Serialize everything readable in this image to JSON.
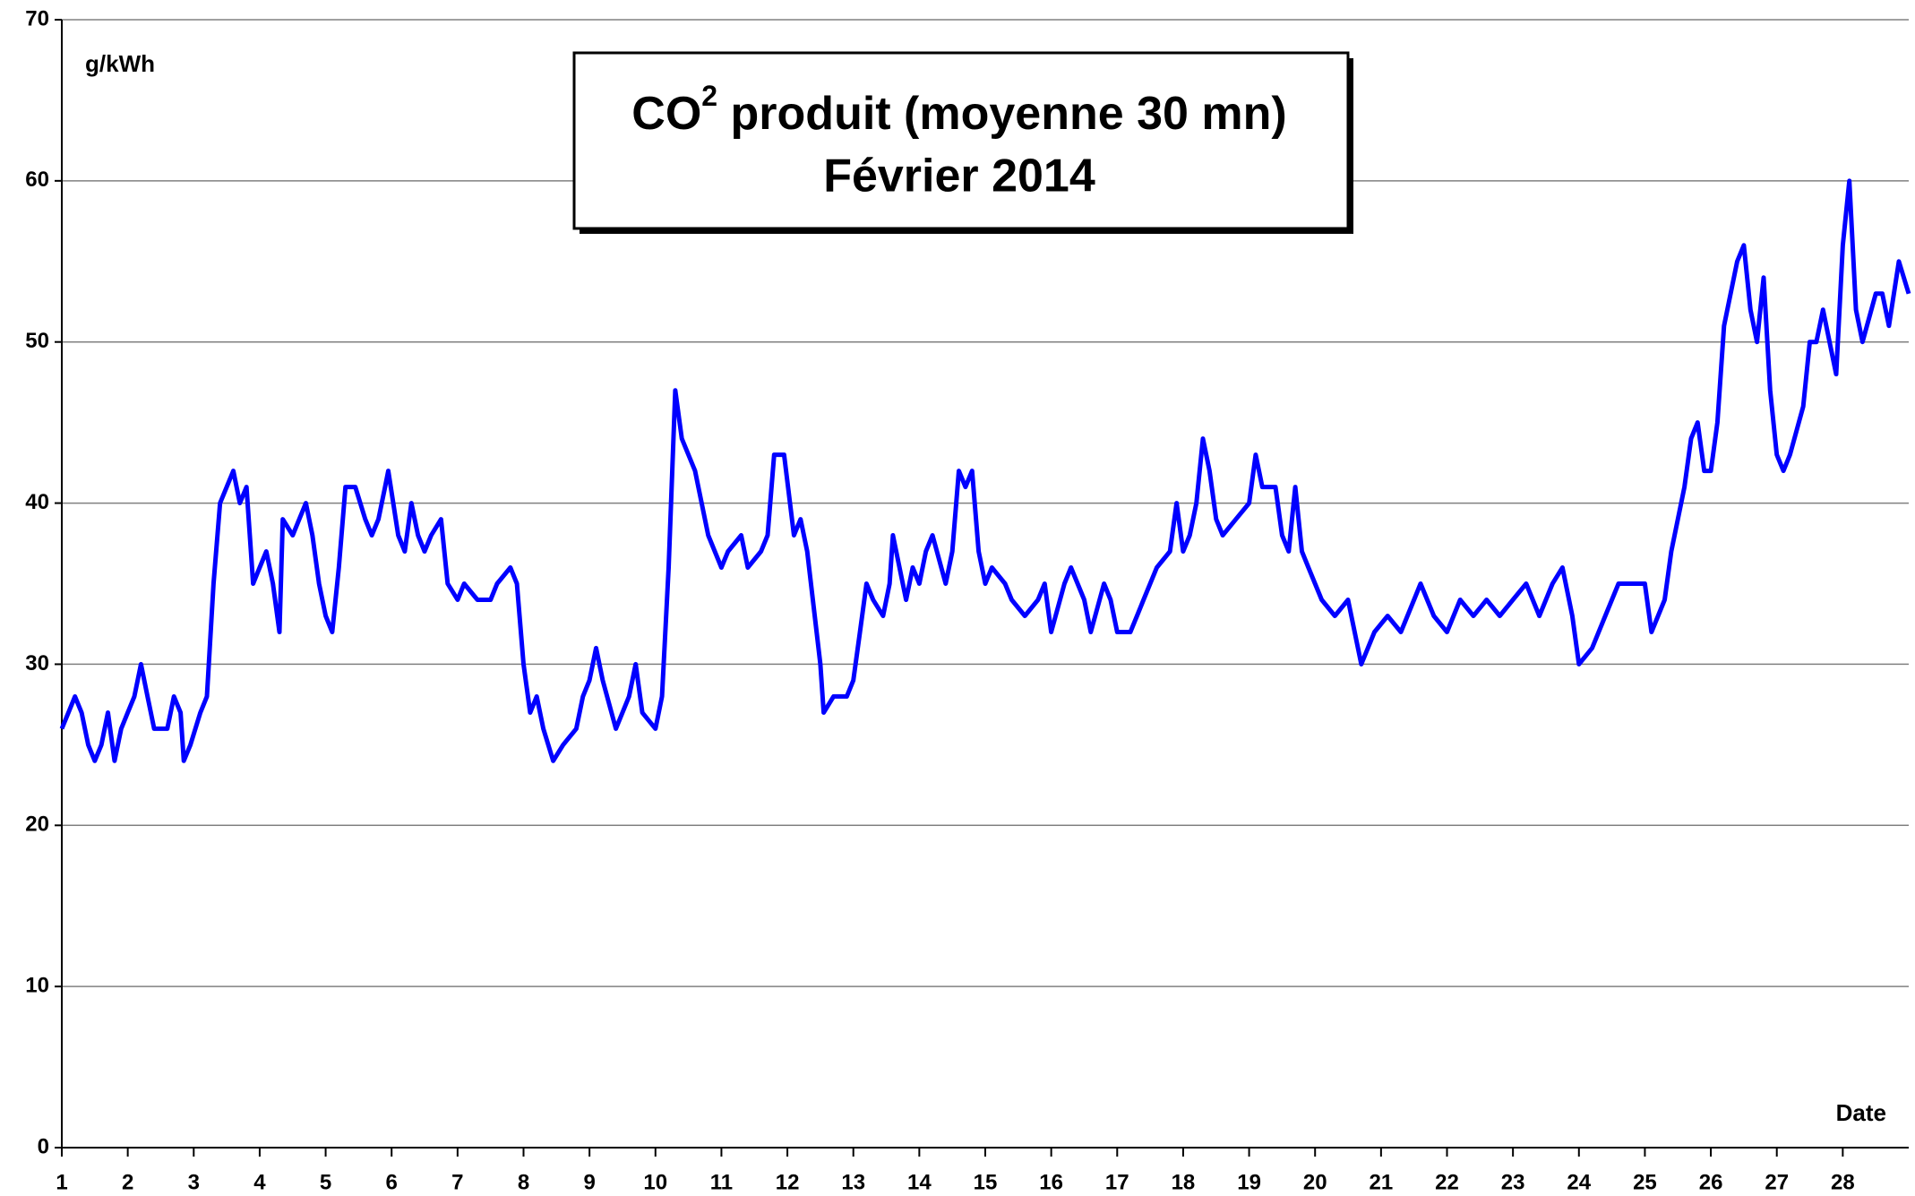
{
  "chart_data": {
    "type": "line",
    "title": [
      "CO",
      "2",
      " produit (moyenne 30 mn)"
    ],
    "subtitle": "Février 2014",
    "y_label": "g/kWh",
    "x_label": "Date",
    "color": "#0000ff",
    "grid": true,
    "xlim": [
      1,
      29
    ],
    "xticks": [
      1,
      2,
      3,
      4,
      5,
      6,
      7,
      8,
      9,
      10,
      11,
      12,
      13,
      14,
      15,
      16,
      17,
      18,
      19,
      20,
      21,
      22,
      23,
      24,
      25,
      26,
      27,
      28
    ],
    "ylim": [
      0,
      70
    ],
    "yticks": [
      0,
      10,
      20,
      30,
      40,
      50,
      60,
      70
    ],
    "x": [
      1.0,
      1.1,
      1.2,
      1.3,
      1.4,
      1.5,
      1.6,
      1.7,
      1.8,
      1.9,
      2.0,
      2.1,
      2.2,
      2.3,
      2.4,
      2.6,
      2.7,
      2.8,
      2.85,
      2.95,
      3.1,
      3.2,
      3.3,
      3.4,
      3.5,
      3.6,
      3.7,
      3.8,
      3.9,
      4.0,
      4.1,
      4.2,
      4.3,
      4.35,
      4.5,
      4.6,
      4.7,
      4.8,
      4.9,
      5.0,
      5.1,
      5.2,
      5.3,
      5.45,
      5.6,
      5.7,
      5.8,
      5.9,
      5.95,
      6.1,
      6.2,
      6.3,
      6.4,
      6.5,
      6.6,
      6.75,
      6.85,
      7.0,
      7.1,
      7.3,
      7.5,
      7.6,
      7.8,
      7.9,
      8.0,
      8.1,
      8.2,
      8.3,
      8.45,
      8.6,
      8.8,
      8.9,
      9.0,
      9.1,
      9.2,
      9.4,
      9.6,
      9.7,
      9.8,
      10.0,
      10.1,
      10.2,
      10.3,
      10.4,
      10.5,
      10.6,
      10.8,
      11.0,
      11.1,
      11.3,
      11.4,
      11.6,
      11.7,
      11.8,
      11.95,
      12.1,
      12.2,
      12.3,
      12.5,
      12.55,
      12.7,
      12.9,
      13.0,
      13.1,
      13.2,
      13.3,
      13.45,
      13.55,
      13.6,
      13.8,
      13.9,
      14.0,
      14.1,
      14.2,
      14.4,
      14.5,
      14.6,
      14.7,
      14.8,
      14.9,
      15.0,
      15.1,
      15.3,
      15.4,
      15.6,
      15.8,
      15.9,
      16.0,
      16.2,
      16.3,
      16.4,
      16.5,
      16.6,
      16.8,
      16.9,
      17.0,
      17.2,
      17.3,
      17.4,
      17.6,
      17.8,
      17.9,
      18.0,
      18.1,
      18.2,
      18.3,
      18.4,
      18.5,
      18.6,
      18.8,
      19.0,
      19.1,
      19.2,
      19.4,
      19.5,
      19.6,
      19.7,
      19.8,
      19.9,
      20.0,
      20.1,
      20.3,
      20.5,
      20.7,
      20.9,
      21.1,
      21.3,
      21.5,
      21.6,
      21.8,
      22.0,
      22.2,
      22.4,
      22.6,
      22.8,
      23.0,
      23.2,
      23.4,
      23.6,
      23.75,
      23.9,
      24.0,
      24.2,
      24.4,
      24.6,
      24.8,
      25.0,
      25.1,
      25.3,
      25.4,
      25.6,
      25.7,
      25.8,
      25.9,
      26.0,
      26.1,
      26.2,
      26.4,
      26.5,
      26.6,
      26.7,
      26.8,
      26.9,
      27.0,
      27.1,
      27.2,
      27.4,
      27.5,
      27.6,
      27.7,
      27.8,
      27.9,
      28.0,
      28.1,
      28.2,
      28.3,
      28.5,
      28.6,
      28.7,
      28.85,
      29.0
    ],
    "values": [
      26,
      27,
      28,
      27,
      25,
      24,
      25,
      27,
      24,
      26,
      27,
      28,
      30,
      28,
      26,
      26,
      28,
      27,
      24,
      25,
      27,
      28,
      35,
      40,
      41,
      42,
      40,
      41,
      35,
      36,
      37,
      35,
      32,
      39,
      38,
      39,
      40,
      38,
      35,
      33,
      32,
      36,
      41,
      41,
      39,
      38,
      39,
      41,
      42,
      38,
      37,
      40,
      38,
      37,
      38,
      39,
      35,
      34,
      35,
      34,
      34,
      35,
      36,
      35,
      30,
      27,
      28,
      26,
      24,
      25,
      26,
      28,
      29,
      31,
      29,
      26,
      28,
      30,
      27,
      26,
      28,
      36,
      47,
      44,
      43,
      42,
      38,
      36,
      37,
      38,
      36,
      37,
      38,
      43,
      43,
      38,
      39,
      37,
      30,
      27,
      28,
      28,
      29,
      32,
      35,
      34,
      33,
      35,
      38,
      34,
      36,
      35,
      37,
      38,
      35,
      37,
      42,
      41,
      42,
      37,
      35,
      36,
      35,
      34,
      33,
      34,
      35,
      32,
      35,
      36,
      35,
      34,
      32,
      35,
      34,
      32,
      32,
      33,
      34,
      36,
      37,
      40,
      37,
      38,
      40,
      44,
      42,
      39,
      38,
      39,
      40,
      43,
      41,
      41,
      38,
      37,
      41,
      37,
      36,
      35,
      34,
      33,
      34,
      30,
      32,
      33,
      32,
      34,
      35,
      33,
      32,
      34,
      33,
      34,
      33,
      34,
      35,
      33,
      35,
      36,
      33,
      30,
      31,
      33,
      35,
      35,
      35,
      32,
      34,
      37,
      41,
      44,
      45,
      42,
      42,
      45,
      51,
      55,
      56,
      52,
      50,
      54,
      47,
      43,
      42,
      43,
      46,
      50,
      50,
      52,
      50,
      48,
      56,
      60,
      52,
      50,
      53,
      53,
      51,
      55,
      53
    ]
  }
}
